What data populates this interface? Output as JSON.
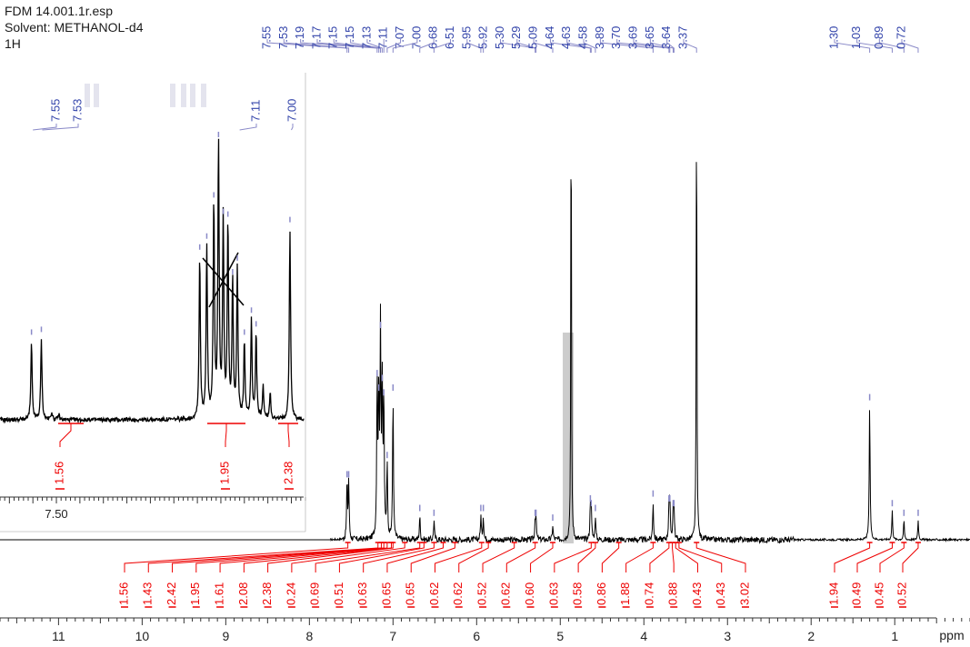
{
  "header": {
    "filename": "FDM 14.001.1r.esp",
    "solvent": "Solvent: METHANOL-d4",
    "nucleus": "1H"
  },
  "colors": {
    "spectrum": "#000000",
    "peak_labels": "#3344aa",
    "peak_ticks": "#8a8ac8",
    "integrals": "#ee0000",
    "solvent_shade": "#cccccc",
    "axis": "#333333"
  },
  "chart_data": [
    {
      "type": "line",
      "title": "",
      "xlabel": "ppm",
      "ylabel": "",
      "x_reversed": true,
      "xlim": [
        11.7,
        0.1
      ],
      "x_ticks": [
        11,
        10,
        9,
        8,
        7,
        6,
        5,
        4,
        3,
        2,
        1
      ],
      "peak_labels": [
        "7.55",
        "7.53",
        "7.19",
        "7.17",
        "7.15",
        "7.15",
        "7.13",
        "7.11",
        "7.07",
        "7.00",
        "6.68",
        "6.51",
        "5.95",
        "5.92",
        "5.30",
        "5.29",
        "5.09",
        "4.64",
        "4.63",
        "4.58",
        "3.89",
        "3.70",
        "3.69",
        "3.65",
        "3.64",
        "3.37",
        "1.30",
        "1.03",
        "0.89",
        "0.72"
      ],
      "peaks": [
        {
          "ppm": 7.55,
          "h": 0.12
        },
        {
          "ppm": 7.53,
          "h": 0.12
        },
        {
          "ppm": 7.19,
          "h": 0.33
        },
        {
          "ppm": 7.17,
          "h": 0.3
        },
        {
          "ppm": 7.15,
          "h": 0.43
        },
        {
          "ppm": 7.13,
          "h": 0.32
        },
        {
          "ppm": 7.11,
          "h": 0.29
        },
        {
          "ppm": 7.07,
          "h": 0.16
        },
        {
          "ppm": 7.0,
          "h": 0.3
        },
        {
          "ppm": 6.68,
          "h": 0.05
        },
        {
          "ppm": 6.51,
          "h": 0.04
        },
        {
          "ppm": 5.95,
          "h": 0.05
        },
        {
          "ppm": 5.92,
          "h": 0.05
        },
        {
          "ppm": 5.3,
          "h": 0.04
        },
        {
          "ppm": 5.29,
          "h": 0.04
        },
        {
          "ppm": 5.09,
          "h": 0.03
        },
        {
          "ppm": 4.87,
          "h": 1.0
        },
        {
          "ppm": 4.64,
          "h": 0.07
        },
        {
          "ppm": 4.63,
          "h": 0.06
        },
        {
          "ppm": 4.58,
          "h": 0.05
        },
        {
          "ppm": 3.89,
          "h": 0.08
        },
        {
          "ppm": 3.7,
          "h": 0.07
        },
        {
          "ppm": 3.69,
          "h": 0.07
        },
        {
          "ppm": 3.65,
          "h": 0.06
        },
        {
          "ppm": 3.64,
          "h": 0.06
        },
        {
          "ppm": 3.37,
          "h": 1.0
        },
        {
          "ppm": 1.3,
          "h": 0.28
        },
        {
          "ppm": 1.03,
          "h": 0.06
        },
        {
          "ppm": 0.89,
          "h": 0.04
        },
        {
          "ppm": 0.72,
          "h": 0.04
        }
      ],
      "solvent_region": [
        4.97,
        4.84
      ],
      "integrals": [
        {
          "value": "1.56",
          "ppm": 7.54
        },
        {
          "value": "1.43",
          "ppm": 7.18
        },
        {
          "value": "2.42",
          "ppm": 7.14
        },
        {
          "value": "1.95",
          "ppm": 7.11
        },
        {
          "value": "1.61",
          "ppm": 7.07
        },
        {
          "value": "2.08",
          "ppm": 7.02
        },
        {
          "value": "2.38",
          "ppm": 7.0
        },
        {
          "value": "0.24",
          "ppm": 6.86
        },
        {
          "value": "0.69",
          "ppm": 6.68
        },
        {
          "value": "0.51",
          "ppm": 6.63
        },
        {
          "value": "0.63",
          "ppm": 6.51
        },
        {
          "value": "0.65",
          "ppm": 6.4
        },
        {
          "value": "0.65",
          "ppm": 6.26
        },
        {
          "value": "0.62",
          "ppm": 5.94
        },
        {
          "value": "0.62",
          "ppm": 5.86
        },
        {
          "value": "0.52",
          "ppm": 5.55
        },
        {
          "value": "0.62",
          "ppm": 5.3
        },
        {
          "value": "0.60",
          "ppm": 5.09
        },
        {
          "value": "0.63",
          "ppm": 4.63
        },
        {
          "value": "0.58",
          "ppm": 4.58
        },
        {
          "value": "0.86",
          "ppm": 4.3
        },
        {
          "value": "1.88",
          "ppm": 3.89
        },
        {
          "value": "0.74",
          "ppm": 3.7
        },
        {
          "value": "0.88",
          "ppm": 3.66
        },
        {
          "value": "0.43",
          "ppm": 3.62
        },
        {
          "value": "0.43",
          "ppm": 3.58
        },
        {
          "value": "3.02",
          "ppm": 3.37
        },
        {
          "value": "1.94",
          "ppm": 1.3
        },
        {
          "value": "0.49",
          "ppm": 1.03
        },
        {
          "value": "0.45",
          "ppm": 0.89
        },
        {
          "value": "0.52",
          "ppm": 0.72
        }
      ]
    },
    {
      "type": "line",
      "title": "",
      "xlabel": "",
      "ylabel": "",
      "x_reversed": true,
      "xlim": [
        7.62,
        6.97
      ],
      "x_ticks": [
        7.5
      ],
      "x_tick_label": "7.50",
      "peak_labels": [
        "7.55",
        "7.53",
        "7.11",
        "7.00"
      ],
      "peaks": [
        {
          "ppm": 7.553,
          "h": 0.28
        },
        {
          "ppm": 7.532,
          "h": 0.29
        },
        {
          "ppm": 7.51,
          "h": 0.03
        },
        {
          "ppm": 7.495,
          "h": 0.02
        },
        {
          "ppm": 7.195,
          "h": 0.59
        },
        {
          "ppm": 7.18,
          "h": 0.63
        },
        {
          "ppm": 7.165,
          "h": 0.78
        },
        {
          "ppm": 7.155,
          "h": 1.0
        },
        {
          "ppm": 7.145,
          "h": 0.72
        },
        {
          "ppm": 7.135,
          "h": 0.71
        },
        {
          "ppm": 7.125,
          "h": 0.5
        },
        {
          "ppm": 7.115,
          "h": 0.55
        },
        {
          "ppm": 7.1,
          "h": 0.28
        },
        {
          "ppm": 7.085,
          "h": 0.36
        },
        {
          "ppm": 7.075,
          "h": 0.31
        },
        {
          "ppm": 7.06,
          "h": 0.12
        },
        {
          "ppm": 7.045,
          "h": 0.1
        },
        {
          "ppm": 7.003,
          "h": 0.69
        }
      ],
      "integrals": [
        {
          "value": "1.56",
          "ppm": 7.54
        },
        {
          "value": "1.95",
          "ppm": 7.11
        },
        {
          "value": "2.38",
          "ppm": 7.0
        }
      ]
    }
  ]
}
